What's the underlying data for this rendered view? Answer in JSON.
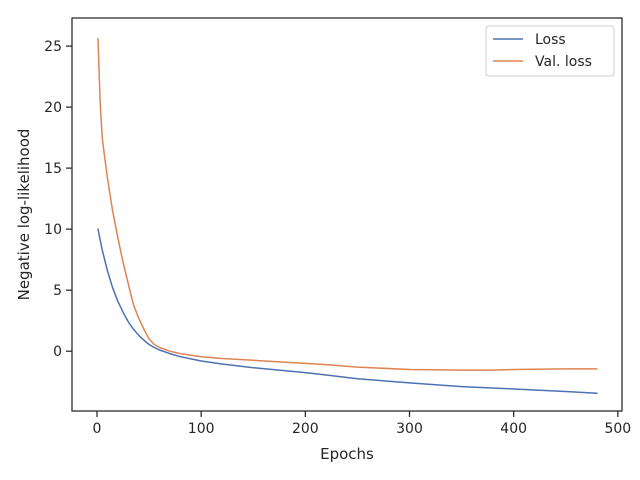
{
  "chart_data": {
    "type": "line",
    "title": "",
    "xlabel": "Epochs",
    "ylabel": "Negative log-likelihood",
    "xlim": [
      -24,
      504
    ],
    "ylim": [
      -4.9,
      27.3
    ],
    "xticks": [
      0,
      100,
      200,
      300,
      400,
      500
    ],
    "yticks": [
      0,
      5,
      10,
      15,
      20,
      25
    ],
    "grid": false,
    "legend": "top-right",
    "series": [
      {
        "name": "Loss",
        "color": "#4c72b0",
        "x": [
          1,
          5,
          10,
          15,
          20,
          25,
          30,
          35,
          40,
          45,
          50,
          55,
          60,
          70,
          80,
          100,
          120,
          150,
          200,
          220,
          250,
          300,
          350,
          400,
          450,
          480
        ],
        "y": [
          10.0,
          8.3,
          6.6,
          5.2,
          4.1,
          3.2,
          2.4,
          1.8,
          1.3,
          0.9,
          0.55,
          0.3,
          0.1,
          -0.2,
          -0.45,
          -0.8,
          -1.05,
          -1.35,
          -1.75,
          -1.95,
          -2.25,
          -2.6,
          -2.9,
          -3.1,
          -3.3,
          -3.45
        ]
      },
      {
        "name": "Val. loss",
        "color": "#dd8452",
        "x": [
          1,
          3,
          5,
          8,
          10,
          15,
          20,
          25,
          30,
          35,
          40,
          45,
          50,
          55,
          60,
          70,
          80,
          100,
          120,
          150,
          200,
          220,
          250,
          300,
          350,
          380,
          400,
          450,
          480
        ],
        "y": [
          25.6,
          20.5,
          17.5,
          15.5,
          14.2,
          11.5,
          9.3,
          7.3,
          5.5,
          3.8,
          2.7,
          1.8,
          1.0,
          0.55,
          0.3,
          0.0,
          -0.2,
          -0.45,
          -0.6,
          -0.75,
          -1.0,
          -1.1,
          -1.3,
          -1.5,
          -1.55,
          -1.55,
          -1.5,
          -1.45,
          -1.45
        ]
      }
    ]
  }
}
